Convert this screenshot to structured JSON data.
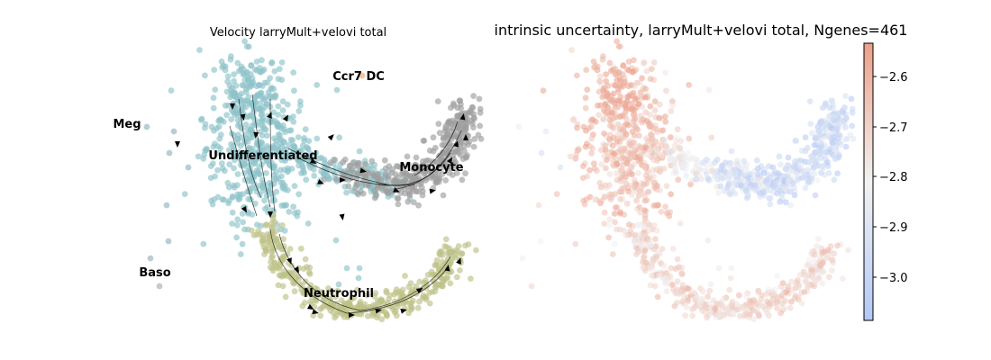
{
  "chart_data": [
    {
      "type": "scatter",
      "title": "Velocity larryMult+velovi total",
      "overlay": "velocity stream arrows",
      "legend": "labels on data",
      "grid": false,
      "clusters": [
        {
          "label": "Undifferentiated",
          "color": "#8ec3ca"
        },
        {
          "label": "Monocyte",
          "color": "#9e9e9e"
        },
        {
          "label": "Neutrophil",
          "color": "#bdc287"
        },
        {
          "label": "Ccr7 DC",
          "color": "#f2a572"
        },
        {
          "label": "Meg",
          "color": "#8fb5bd"
        },
        {
          "label": "Baso",
          "color": "#9fb1ba"
        }
      ]
    },
    {
      "type": "scatter",
      "title": "intrinsic uncertainty, larryMult+velovi total, Ngenes=461",
      "colorbar": {
        "range": [
          -3.08,
          -2.54
        ],
        "ticks": [
          "−2.6",
          "−2.7",
          "−2.8",
          "−2.9",
          "−3.0"
        ],
        "colormap": "coolwarm",
        "low_color": "#b3c8f5",
        "mid_color": "#f2f2f2",
        "high_color": "#eba08a"
      },
      "grid": false
    }
  ]
}
